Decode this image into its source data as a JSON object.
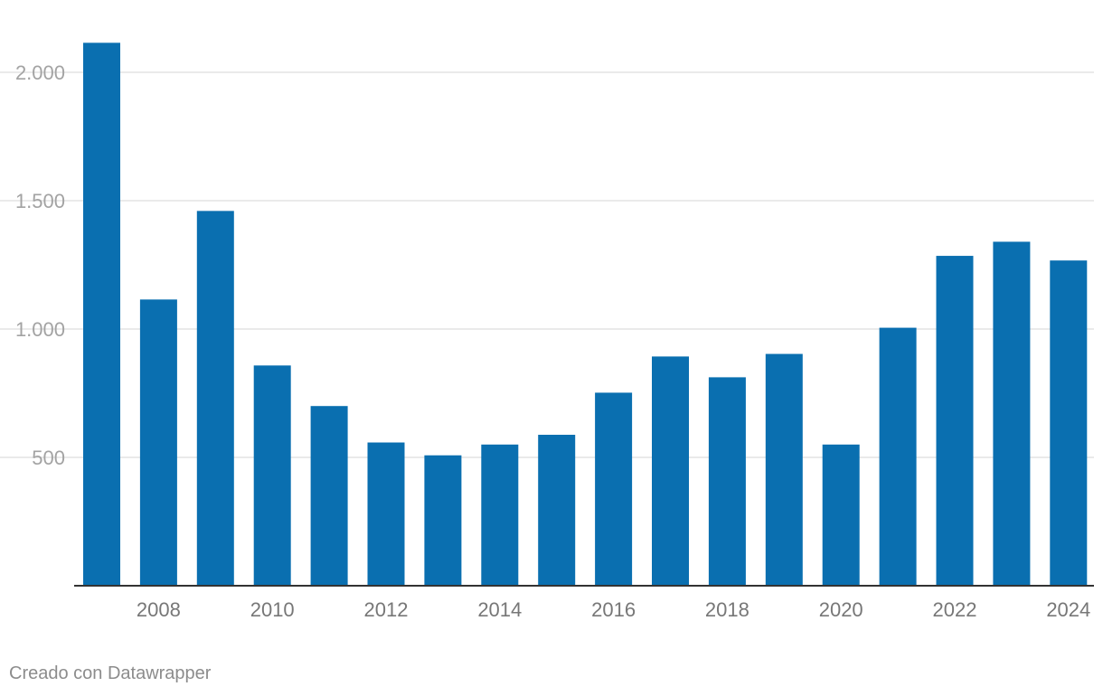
{
  "chart_data": {
    "type": "bar",
    "categories": [
      "2007",
      "2008",
      "2009",
      "2010",
      "2011",
      "2012",
      "2013",
      "2014",
      "2015",
      "2016",
      "2017",
      "2018",
      "2019",
      "2020",
      "2021",
      "2022",
      "2023",
      "2024"
    ],
    "values": [
      2115,
      1115,
      1460,
      858,
      700,
      558,
      508,
      550,
      588,
      752,
      893,
      812,
      903,
      550,
      1005,
      1285,
      1340,
      1267
    ],
    "x_tick_labels": [
      "2008",
      "2010",
      "2012",
      "2014",
      "2016",
      "2018",
      "2020",
      "2022",
      "2024"
    ],
    "y_ticks": [
      500,
      1000,
      1500,
      2000
    ],
    "y_tick_labels": [
      "500",
      "1.000",
      "1.500",
      "2.000"
    ],
    "ylim": [
      0,
      2120
    ],
    "title": "",
    "xlabel": "",
    "ylabel": "",
    "grid": true,
    "bar_color": "#0a6fb0",
    "grid_color": "#e3e3e3",
    "axis_color": "#333333"
  },
  "footer": {
    "credit": "Creado con Datawrapper"
  }
}
